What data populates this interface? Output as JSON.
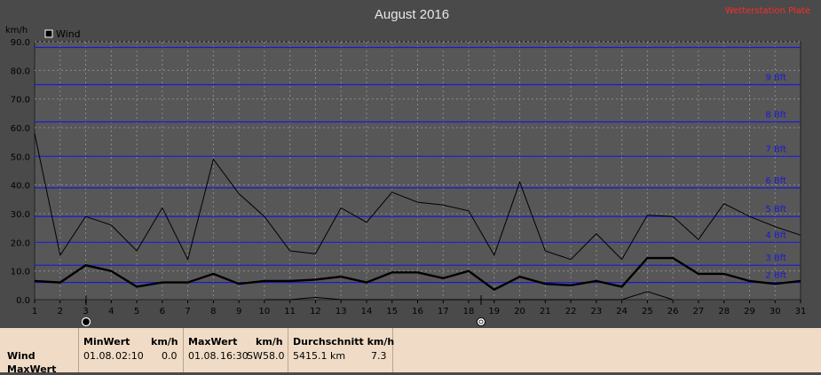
{
  "credit": "Wetterstation Plate",
  "chart_data": {
    "type": "line",
    "title": "August 2016",
    "ylabel": "km/h",
    "ylim": [
      0,
      90
    ],
    "yticks": [
      "0.0",
      "10.0",
      "20.0",
      "30.0",
      "40.0",
      "50.0",
      "60.0",
      "70.0",
      "80.0",
      "90.0"
    ],
    "x": [
      1,
      2,
      3,
      4,
      5,
      6,
      7,
      8,
      9,
      10,
      11,
      12,
      13,
      14,
      15,
      16,
      17,
      18,
      19,
      20,
      21,
      22,
      23,
      24,
      25,
      26,
      27,
      28,
      29,
      30,
      31
    ],
    "legend": "Wind",
    "beaufort": [
      {
        "label": "2 Bft",
        "value": 6
      },
      {
        "label": "3 Bft",
        "value": 12
      },
      {
        "label": "4 Bft",
        "value": 20
      },
      {
        "label": "5 Bft",
        "value": 29
      },
      {
        "label": "6 Bft",
        "value": 39
      },
      {
        "label": "7 Bft",
        "value": 50
      },
      {
        "label": "8 Bft",
        "value": 62
      },
      {
        "label": "9 Bft",
        "value": 75
      },
      {
        "label": "",
        "value": 88
      }
    ],
    "series": [
      {
        "role": "max",
        "values": [
          58,
          15.5,
          29,
          26,
          17,
          32,
          14,
          49,
          37,
          29,
          17,
          16,
          32,
          27,
          37.5,
          34,
          33,
          31,
          15.5,
          41,
          17,
          14,
          23,
          14,
          29.5,
          29,
          21,
          33.5,
          29,
          25.5,
          22.5
        ]
      },
      {
        "role": "avg",
        "values": [
          6.5,
          6,
          12,
          10,
          4.5,
          6,
          6,
          9,
          5.5,
          6.5,
          6.5,
          7,
          8,
          6,
          9.5,
          9.5,
          7.5,
          10,
          3.5,
          8,
          5.5,
          5,
          6.5,
          4.5,
          14.5,
          14.5,
          9,
          9,
          6.5,
          5.5,
          6.5
        ]
      },
      {
        "role": "min",
        "x": [
          10,
          11,
          12,
          13,
          14,
          15,
          16,
          17,
          18,
          19,
          20,
          21,
          22,
          23,
          24,
          25,
          26
        ],
        "values": [
          0,
          0,
          0.8,
          0,
          0,
          0,
          0,
          0,
          0,
          0,
          0,
          0,
          0,
          0,
          0,
          2.8,
          0
        ]
      }
    ]
  },
  "table": {
    "row1_label": "Wind",
    "row2_label": "MaxWert",
    "min_header": "MinWert",
    "min_unit": "km/h",
    "min_date": "01.08.",
    "min_time": "02:10",
    "min_value": "0.0",
    "max_header": "MaxWert",
    "max_unit": "km/h",
    "max_date": "01.08.",
    "max_time": "16:30",
    "max_dir": "SW",
    "max_value": "58.0",
    "avg_header": "Durchschnitt km/h",
    "avg_distance": "5415.1 km",
    "avg_value": "7.3"
  }
}
